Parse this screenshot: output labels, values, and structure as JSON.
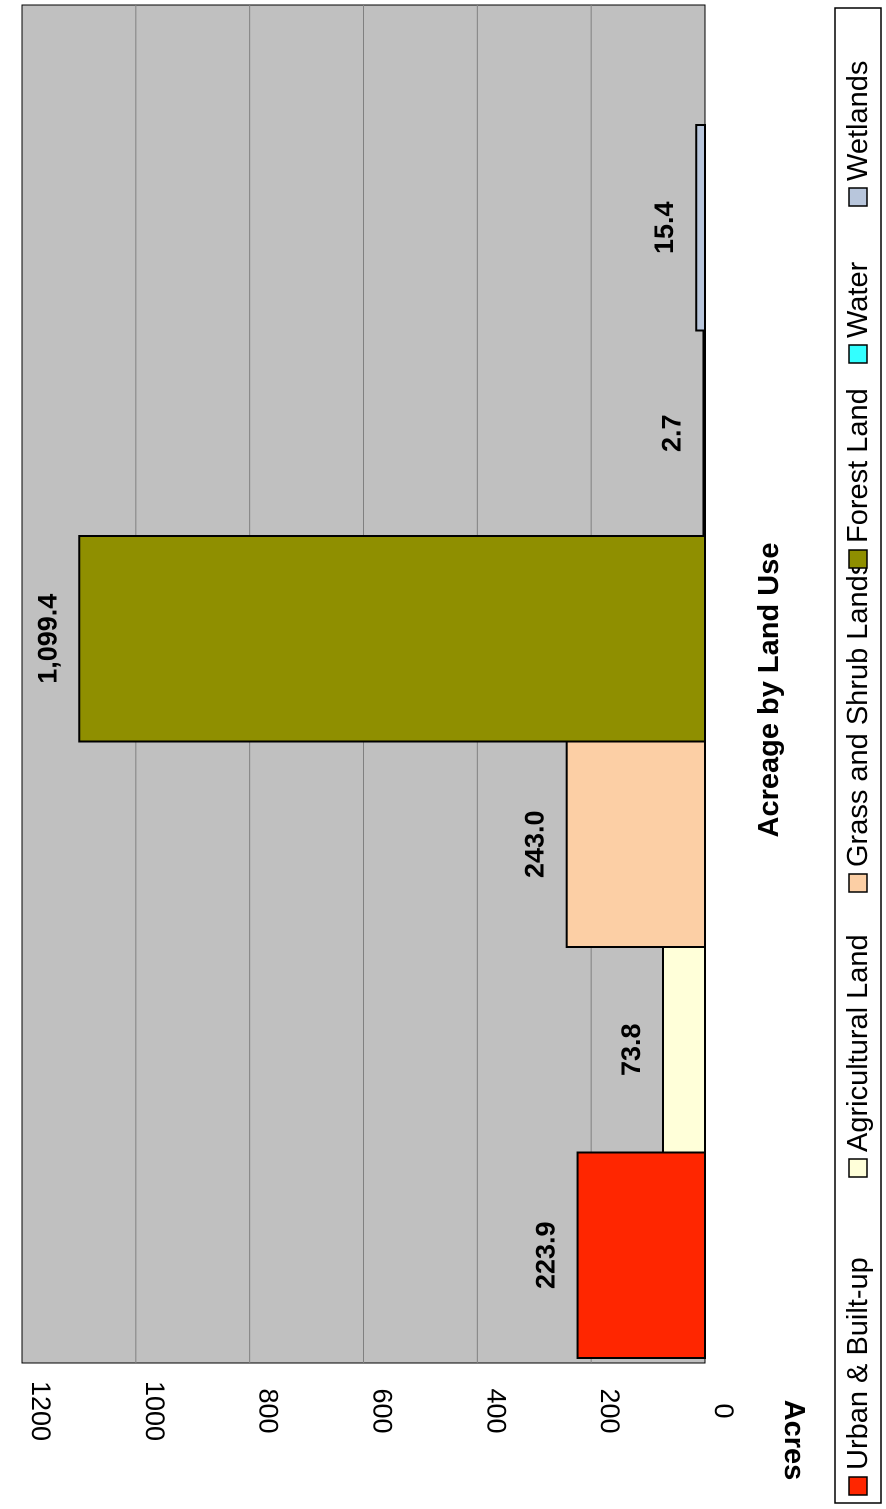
{
  "chart_data": {
    "type": "bar",
    "orientation": "rotated-90-clockwise",
    "title": "",
    "xlabel": "Acreage by Land Use",
    "ylabel": "Acres",
    "ylim": [
      0,
      1200
    ],
    "yticks": [
      "0",
      "200",
      "400",
      "600",
      "800",
      "1000",
      "1200"
    ],
    "grid": true,
    "legend_position": "right",
    "series": [
      {
        "name": "Urban & Built-up",
        "value": 223.9,
        "label": "223.9",
        "color": "#ff2600"
      },
      {
        "name": "Agricultural Land",
        "value": 73.8,
        "label": "73.8",
        "color": "#ffffd9"
      },
      {
        "name": "Grass and Shrub Lands",
        "value": 243.0,
        "label": "243.0",
        "color": "#fccfa5"
      },
      {
        "name": "Forest Land",
        "value": 1099.4,
        "label": "1,099.4",
        "color": "#8f8f00"
      },
      {
        "name": "Water",
        "value": 2.7,
        "label": "2.7",
        "color": "#33ffff"
      },
      {
        "name": "Wetlands",
        "value": 15.4,
        "label": "15.4",
        "color": "#b8c6dc"
      }
    ]
  },
  "colors": {
    "plot_background": "#c0c0c0",
    "gridline": "#808080"
  }
}
